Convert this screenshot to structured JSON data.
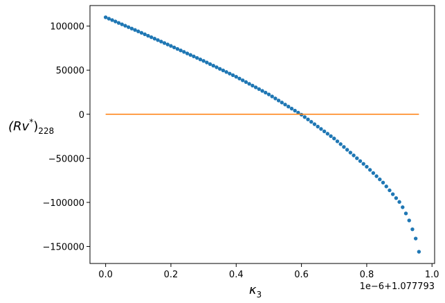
{
  "chart_data": {
    "type": "scatter",
    "xlabel": {
      "main": "κ",
      "sub": "3"
    },
    "ylabel": {
      "main": "(Rv",
      "sup": "*",
      "close": ")",
      "sub": "228"
    },
    "x_offset_text": "1e−6+1.077793",
    "xlim": [
      -0.048,
      1.008
    ],
    "ylim": [
      -169300,
      123300
    ],
    "xticks": [
      {
        "value": 0,
        "label": "0.0"
      },
      0.2,
      0.4,
      0.6,
      0.8,
      {
        "value": 1,
        "label": "1.0"
      }
    ],
    "yticks": [
      {
        "value": -150000,
        "label": "−150000"
      },
      {
        "value": -100000,
        "label": "−100000"
      },
      {
        "value": -50000,
        "label": "−50000"
      },
      0,
      50000,
      100000
    ],
    "series": [
      {
        "kind": "points",
        "color": "#1f77b4",
        "x": [
          0,
          0.01,
          0.02,
          0.03,
          0.04,
          0.05,
          0.06,
          0.07,
          0.08,
          0.09,
          0.1,
          0.11,
          0.12,
          0.13,
          0.14,
          0.15,
          0.16,
          0.17,
          0.18,
          0.19,
          0.2,
          0.21,
          0.22,
          0.23,
          0.24,
          0.25,
          0.26,
          0.27,
          0.28,
          0.29,
          0.3,
          0.31,
          0.32,
          0.33,
          0.34,
          0.35,
          0.36,
          0.37,
          0.38,
          0.39,
          0.4,
          0.41,
          0.42,
          0.43,
          0.44,
          0.45,
          0.46,
          0.47,
          0.48,
          0.49,
          0.5,
          0.51,
          0.52,
          0.53,
          0.54,
          0.55,
          0.56,
          0.57,
          0.58,
          0.59,
          0.6,
          0.61,
          0.62,
          0.63,
          0.64,
          0.65,
          0.66,
          0.67,
          0.68,
          0.69,
          0.7,
          0.71,
          0.72,
          0.73,
          0.74,
          0.75,
          0.76,
          0.77,
          0.78,
          0.79,
          0.8,
          0.81,
          0.82,
          0.83,
          0.84,
          0.85,
          0.86,
          0.87,
          0.88,
          0.89,
          0.9,
          0.91,
          0.92,
          0.93,
          0.94,
          0.95,
          0.96
        ],
        "values": [
          110000,
          108400,
          106800,
          105200,
          103600,
          102000,
          100400,
          98800,
          97200,
          95600,
          94000,
          92350,
          90700,
          89050,
          87400,
          85750,
          84100,
          82450,
          80800,
          79150,
          77500,
          75800,
          74100,
          72400,
          70700,
          69000,
          67300,
          65600,
          63900,
          62200,
          60500,
          58700,
          56900,
          55100,
          53300,
          51500,
          49700,
          47900,
          46100,
          44300,
          42500,
          40500,
          38500,
          36500,
          34500,
          32500,
          30500,
          28500,
          26500,
          24500,
          22500,
          20200,
          17900,
          15600,
          13300,
          11000,
          8700,
          6400,
          4100,
          1800,
          -500,
          -3200,
          -5900,
          -8600,
          -11300,
          -14000,
          -16700,
          -19400,
          -22100,
          -24800,
          -27500,
          -30700,
          -33900,
          -37100,
          -40300,
          -43500,
          -46700,
          -49900,
          -53100,
          -56300,
          -59500,
          -63100,
          -66700,
          -70300,
          -73900,
          -77500,
          -81900,
          -86300,
          -90700,
          -95100,
          -99500,
          -105500,
          -112500,
          -120500,
          -130500,
          -141000,
          -156000
        ]
      },
      {
        "kind": "line",
        "color": "#ff7f0e",
        "x": [
          0,
          0.96
        ],
        "values": [
          0,
          0
        ]
      }
    ]
  }
}
